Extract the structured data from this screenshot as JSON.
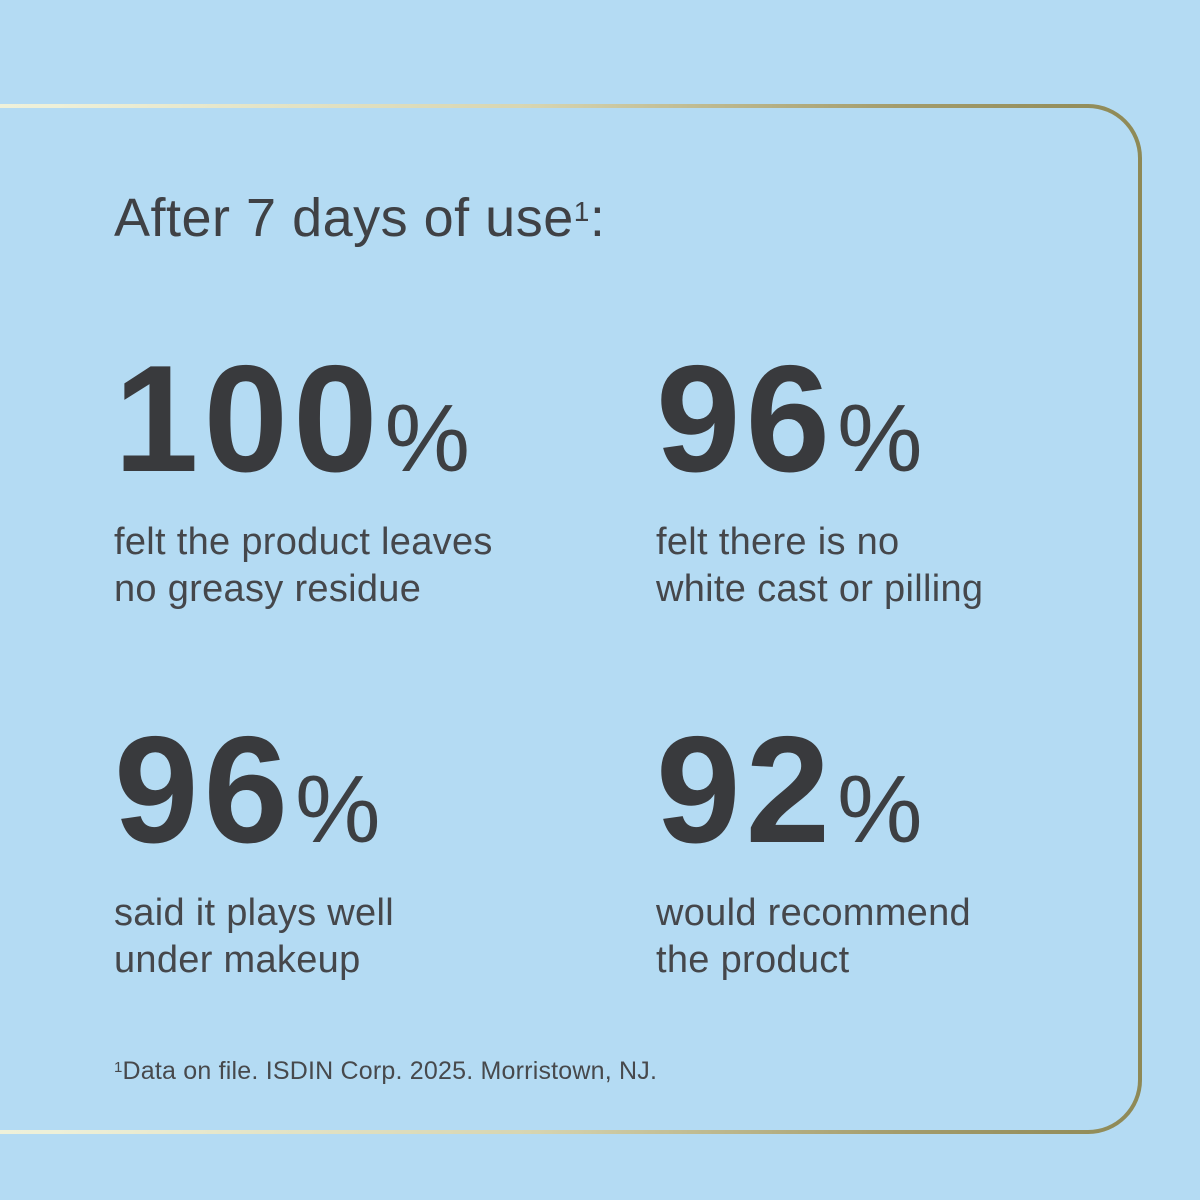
{
  "page": {
    "background_color": "#b4dbf3",
    "frame": {
      "style": "thin rounded-rectangle outline, left side cropped off-canvas",
      "gradient_left_color": "#f3f5df",
      "gradient_mid_color": "#d7d5b1",
      "gradient_right_color": "#8e8956"
    },
    "text_color": "#45474b",
    "number_color": "#393a3d"
  },
  "heading": {
    "text": "After 7 days of use",
    "superscript": "1",
    "suffix": ":"
  },
  "stats": [
    {
      "value": "100",
      "unit": "%",
      "label": "felt the product leaves\nno greasy residue"
    },
    {
      "value": "96",
      "unit": "%",
      "label": "felt there is no\nwhite cast or pilling"
    },
    {
      "value": "96",
      "unit": "%",
      "label": "said it plays well\nunder makeup"
    },
    {
      "value": "92",
      "unit": "%",
      "label": "would recommend\nthe product"
    }
  ],
  "footnote": {
    "superscript": "1",
    "text": "Data on file. ISDIN Corp. 2025. Morristown, NJ."
  },
  "chart_data": {
    "type": "table",
    "title": "After 7 days of use",
    "categories": [
      "felt the product leaves no greasy residue",
      "felt there is no white cast or pilling",
      "said it plays well under makeup",
      "would recommend the product"
    ],
    "values": [
      100,
      96,
      96,
      92
    ],
    "unit": "%",
    "source_note": "Data on file. ISDIN Corp. 2025. Morristown, NJ.",
    "layout": "2x2 grid of big-number statistics, no axes"
  }
}
